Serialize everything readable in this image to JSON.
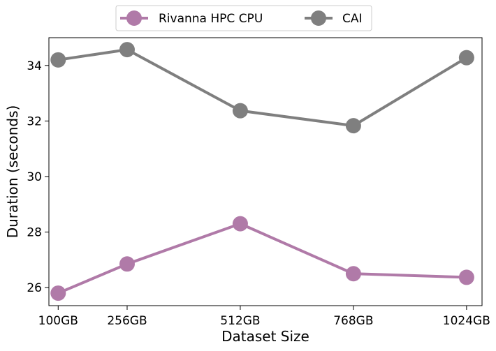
{
  "chart_data": {
    "type": "line",
    "categories": [
      "100GB",
      "256GB",
      "512GB",
      "768GB",
      "1024GB"
    ],
    "x": [
      100,
      256,
      512,
      768,
      1024
    ],
    "series": [
      {
        "name": "Rivanna HPC CPU",
        "color": "#b07aa8",
        "values": [
          25.8,
          26.85,
          28.3,
          26.5,
          26.37
        ]
      },
      {
        "name": "CAI",
        "color": "#7f7f7f",
        "values": [
          34.2,
          34.57,
          32.37,
          31.83,
          34.28
        ]
      }
    ],
    "xlabel": "Dataset Size",
    "ylabel": "Duration (seconds)",
    "xlim": [
      79,
      1059
    ],
    "ylim": [
      25.35,
      35.0
    ],
    "yticks": [
      26,
      28,
      30,
      32,
      34
    ],
    "ytick_labels": [
      "26",
      "28",
      "30",
      "32",
      "34"
    ],
    "legend_position": "top-center",
    "grid": false
  }
}
